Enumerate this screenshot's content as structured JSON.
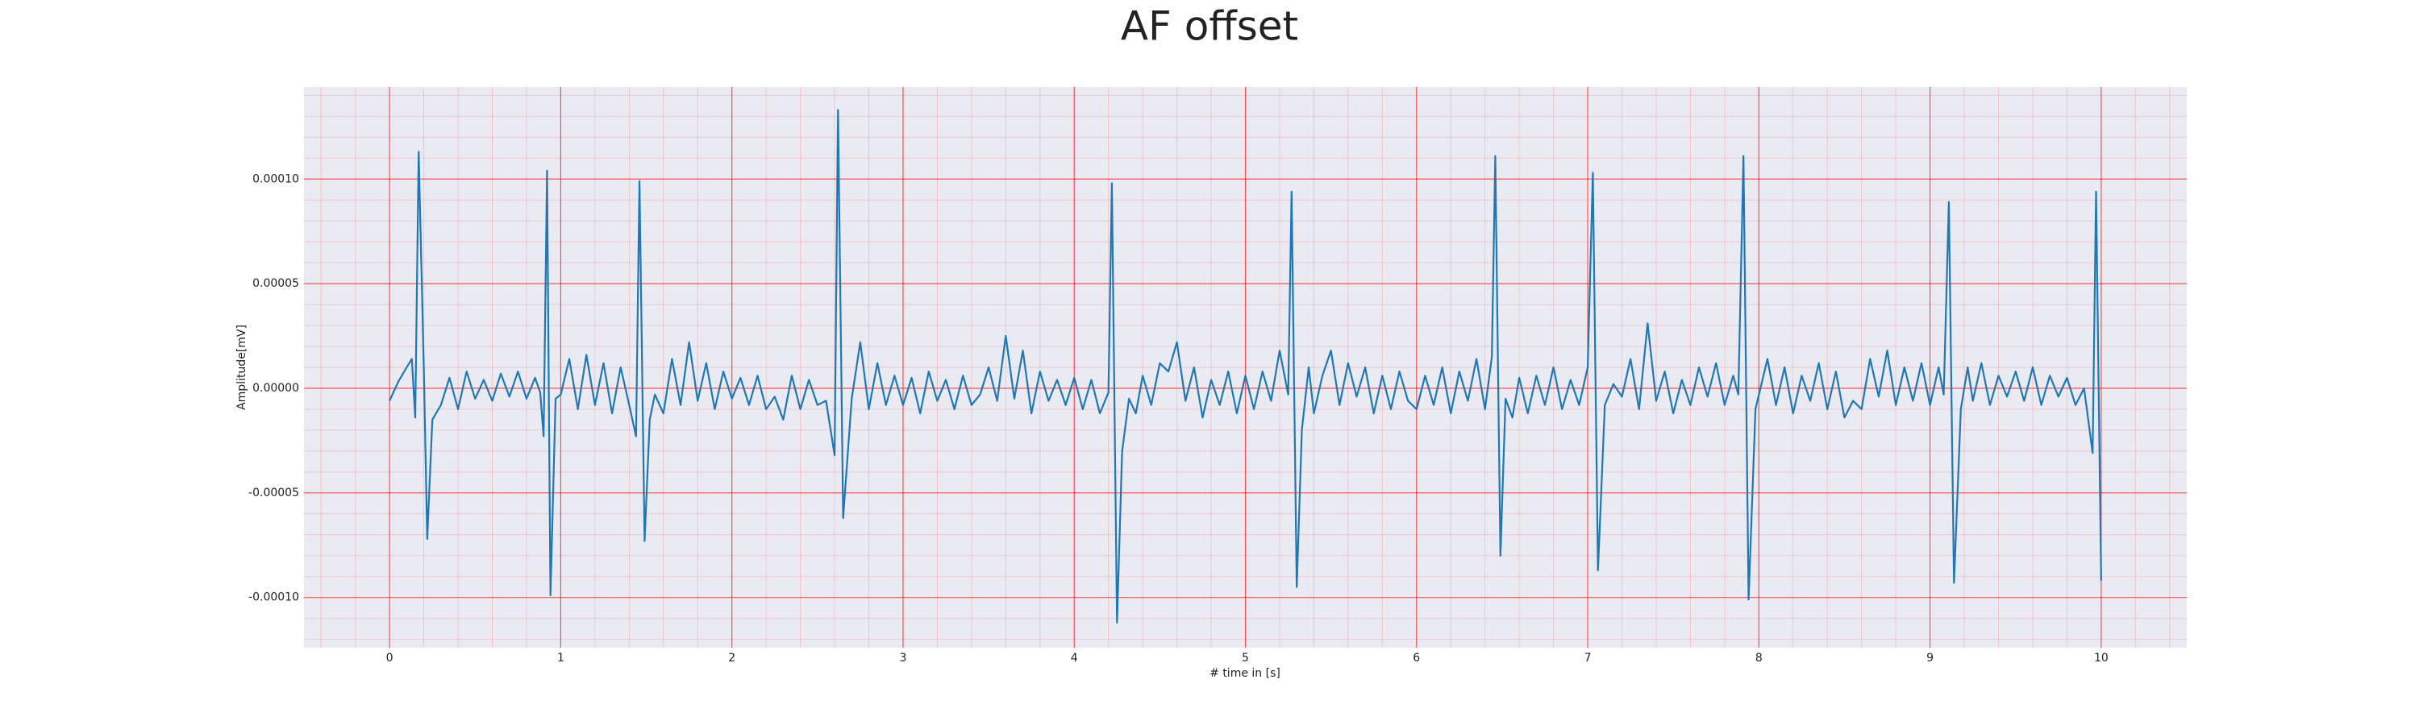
{
  "chart_data": {
    "type": "line",
    "title": "AF offset",
    "x_label": "# time in [s]",
    "y_label": "Amplitude[mV]",
    "xlim": [
      -0.5,
      10.5
    ],
    "ylim": [
      -0.000124,
      0.000144
    ],
    "xticks": [
      0,
      1,
      2,
      3,
      4,
      5,
      6,
      7,
      8,
      9,
      10
    ],
    "yticks": [
      {
        "value": -0.0001,
        "label": "-0.00010"
      },
      {
        "value": -5e-05,
        "label": "-0.00005"
      },
      {
        "value": 0,
        "label": "0.00000"
      },
      {
        "value": 5e-05,
        "label": "0.00005"
      },
      {
        "value": 0.0001,
        "label": "0.00010"
      }
    ],
    "grid": true,
    "grid_color": "#ff0000",
    "background": "#eaeaf2",
    "series": [
      {
        "color": "#1f77b4",
        "x": [
          0,
          0.05,
          0.1,
          0.13,
          0.15,
          0.17,
          0.2,
          0.22,
          0.25,
          0.3,
          0.35,
          0.4,
          0.45,
          0.5,
          0.55,
          0.6,
          0.65,
          0.7,
          0.75,
          0.8,
          0.85,
          0.88,
          0.9,
          0.92,
          0.94,
          0.97,
          1.0,
          1.05,
          1.1,
          1.15,
          1.2,
          1.25,
          1.3,
          1.35,
          1.4,
          1.44,
          1.46,
          1.49,
          1.52,
          1.55,
          1.6,
          1.65,
          1.7,
          1.75,
          1.8,
          1.85,
          1.9,
          1.95,
          2.0,
          2.05,
          2.1,
          2.15,
          2.2,
          2.25,
          2.3,
          2.35,
          2.4,
          2.45,
          2.5,
          2.55,
          2.6,
          2.62,
          2.65,
          2.7,
          2.75,
          2.8,
          2.85,
          2.9,
          2.95,
          3.0,
          3.05,
          3.1,
          3.15,
          3.2,
          3.25,
          3.3,
          3.35,
          3.4,
          3.45,
          3.5,
          3.55,
          3.6,
          3.65,
          3.7,
          3.75,
          3.8,
          3.85,
          3.9,
          3.95,
          4.0,
          4.05,
          4.1,
          4.15,
          4.2,
          4.22,
          4.25,
          4.28,
          4.32,
          4.36,
          4.4,
          4.45,
          4.5,
          4.55,
          4.6,
          4.65,
          4.7,
          4.75,
          4.8,
          4.85,
          4.9,
          4.95,
          5.0,
          5.05,
          5.1,
          5.15,
          5.2,
          5.25,
          5.27,
          5.3,
          5.33,
          5.37,
          5.4,
          5.45,
          5.5,
          5.55,
          5.6,
          5.65,
          5.7,
          5.75,
          5.8,
          5.85,
          5.9,
          5.95,
          6.0,
          6.05,
          6.1,
          6.15,
          6.2,
          6.25,
          6.3,
          6.35,
          6.4,
          6.44,
          6.46,
          6.49,
          6.52,
          6.56,
          6.6,
          6.65,
          6.7,
          6.75,
          6.8,
          6.85,
          6.9,
          6.95,
          7.0,
          7.03,
          7.06,
          7.1,
          7.15,
          7.2,
          7.25,
          7.3,
          7.35,
          7.4,
          7.45,
          7.5,
          7.55,
          7.6,
          7.65,
          7.7,
          7.75,
          7.8,
          7.85,
          7.88,
          7.91,
          7.94,
          7.98,
          8.05,
          8.1,
          8.15,
          8.2,
          8.25,
          8.3,
          8.35,
          8.4,
          8.45,
          8.5,
          8.55,
          8.6,
          8.65,
          8.7,
          8.75,
          8.8,
          8.85,
          8.9,
          8.95,
          9.0,
          9.05,
          9.08,
          9.11,
          9.14,
          9.18,
          9.22,
          9.25,
          9.3,
          9.35,
          9.4,
          9.45,
          9.5,
          9.55,
          9.6,
          9.65,
          9.7,
          9.75,
          9.8,
          9.85,
          9.9,
          9.95,
          9.97,
          10.0
        ],
        "values": [
          -6e-06,
          3e-06,
          1e-05,
          1.4e-05,
          -1.4e-05,
          0.000113,
          1e-05,
          -7.2e-05,
          -1.5e-05,
          -8e-06,
          5e-06,
          -1e-05,
          8e-06,
          -5e-06,
          4e-06,
          -6e-06,
          7e-06,
          -4e-06,
          8e-06,
          -5e-06,
          5e-06,
          -2e-06,
          -2.3e-05,
          0.000104,
          -9.9e-05,
          -5e-06,
          -3e-06,
          1.4e-05,
          -1e-05,
          1.6e-05,
          -8e-06,
          1.2e-05,
          -1.2e-05,
          1e-05,
          -8e-06,
          -2.3e-05,
          9.9e-05,
          -7.3e-05,
          -1.5e-05,
          -3e-06,
          -1.2e-05,
          1.4e-05,
          -8e-06,
          2.2e-05,
          -6e-06,
          1.2e-05,
          -1e-05,
          8e-06,
          -5e-06,
          5e-06,
          -8e-06,
          6e-06,
          -1e-05,
          -4e-06,
          -1.5e-05,
          6e-06,
          -1e-05,
          4e-06,
          -8e-06,
          -6e-06,
          -3.2e-05,
          0.000133,
          -6.2e-05,
          -5e-06,
          2.2e-05,
          -1e-05,
          1.2e-05,
          -8e-06,
          6e-06,
          -8e-06,
          5e-06,
          -1.2e-05,
          8e-06,
          -6e-06,
          4e-06,
          -1e-05,
          6e-06,
          -8e-06,
          -3e-06,
          1e-05,
          -6e-06,
          2.5e-05,
          -5e-06,
          1.8e-05,
          -1.2e-05,
          8e-06,
          -6e-06,
          4e-06,
          -8e-06,
          5e-06,
          -1e-05,
          4e-06,
          -1.2e-05,
          -2e-06,
          9.8e-05,
          -0.000112,
          -3e-05,
          -5e-06,
          -1.2e-05,
          6e-06,
          -8e-06,
          1.2e-05,
          8e-06,
          2.2e-05,
          -6e-06,
          1e-05,
          -1.4e-05,
          4e-06,
          -8e-06,
          8e-06,
          -1.2e-05,
          6e-06,
          -1e-05,
          8e-06,
          -6e-06,
          1.8e-05,
          -3e-06,
          9.4e-05,
          -9.5e-05,
          -2e-05,
          1e-05,
          -1.2e-05,
          6e-06,
          1.8e-05,
          -8e-06,
          1.2e-05,
          -4e-06,
          1e-05,
          -1.2e-05,
          6e-06,
          -1e-05,
          8e-06,
          -6e-06,
          -1e-05,
          6e-06,
          -8e-06,
          1e-05,
          -1.2e-05,
          8e-06,
          -6e-06,
          1.4e-05,
          -1e-05,
          1.5e-05,
          0.000111,
          -8e-05,
          -5e-06,
          -1.4e-05,
          5e-06,
          -1.2e-05,
          6e-06,
          -8e-06,
          1e-05,
          -1e-05,
          4e-06,
          -8e-06,
          1e-05,
          0.000103,
          -8.7e-05,
          -8e-06,
          2e-06,
          -4e-06,
          1.4e-05,
          -1e-05,
          3.1e-05,
          -6e-06,
          8e-06,
          -1.2e-05,
          4e-06,
          -8e-06,
          1e-05,
          -4e-06,
          1.2e-05,
          -8e-06,
          6e-06,
          -3e-06,
          0.000111,
          -0.000101,
          -1e-05,
          1.4e-05,
          -8e-06,
          1e-05,
          -1.2e-05,
          6e-06,
          -6e-06,
          1.2e-05,
          -1e-05,
          8e-06,
          -1.4e-05,
          -6e-06,
          -1e-05,
          1.4e-05,
          -4e-06,
          1.8e-05,
          -8e-06,
          1e-05,
          -6e-06,
          1.2e-05,
          -8e-06,
          1e-05,
          -3e-06,
          8.9e-05,
          -9.3e-05,
          -1e-05,
          1e-05,
          -6e-06,
          1.2e-05,
          -8e-06,
          6e-06,
          -4e-06,
          8e-06,
          -6e-06,
          1e-05,
          -8e-06,
          6e-06,
          -4e-06,
          5e-06,
          -8e-06,
          0,
          -3.1e-05,
          9.4e-05,
          -9.2e-05
        ]
      }
    ]
  }
}
